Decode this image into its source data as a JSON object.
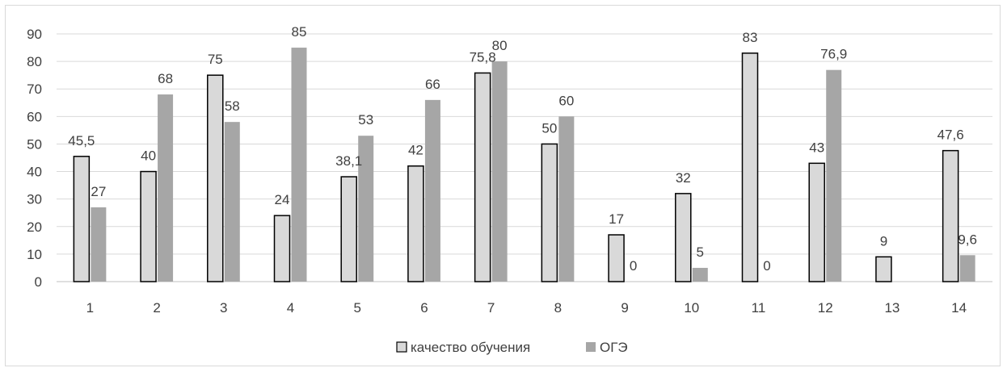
{
  "chart_data": {
    "type": "bar",
    "categories": [
      "1",
      "2",
      "3",
      "4",
      "5",
      "6",
      "7",
      "8",
      "9",
      "10",
      "11",
      "12",
      "13",
      "14"
    ],
    "series": [
      {
        "name": "качество обучения",
        "values": [
          45.5,
          40,
          75,
          24,
          38.1,
          42,
          75.8,
          50,
          17,
          32,
          83,
          43,
          9,
          47.6
        ],
        "labels": [
          "45,5",
          "40",
          "75",
          "24",
          "38,1",
          "42",
          "75,8",
          "50",
          "17",
          "32",
          "83",
          "43",
          "9",
          "47,6"
        ],
        "color": "#d9d9d9",
        "stroke": "#000000"
      },
      {
        "name": "ОГЭ",
        "values": [
          27,
          68,
          58,
          85,
          53,
          66,
          80,
          60,
          0,
          5,
          0,
          76.9,
          null,
          9.6
        ],
        "labels": [
          "27",
          "68",
          "58",
          "85",
          "53",
          "66",
          "80",
          "60",
          "0",
          "5",
          "0",
          "76,9",
          "",
          "9,6"
        ],
        "color": "#a6a6a6",
        "stroke": "none"
      }
    ],
    "ylim": [
      0,
      90
    ],
    "yticks": [
      "0",
      "10",
      "20",
      "30",
      "40",
      "50",
      "60",
      "70",
      "80",
      "90"
    ],
    "grid": true,
    "legend_position": "bottom",
    "gridline_color": "#d9d9d9",
    "axis_color": "#bfbfbf"
  }
}
